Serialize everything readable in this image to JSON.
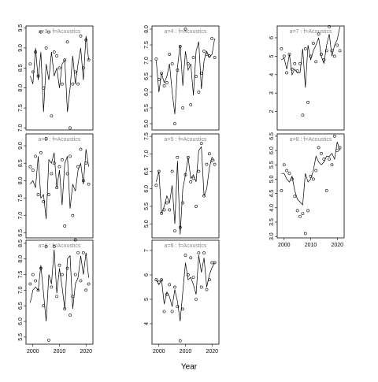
{
  "chart_data": [
    {
      "type": "line",
      "title": "a=3 : f=Acoustics",
      "x": [
        1999,
        2000,
        2001,
        2002,
        2003,
        2004,
        2005,
        2006,
        2007,
        2008,
        2009,
        2010,
        2011,
        2012,
        2013,
        2014,
        2015,
        2016,
        2017,
        2018,
        2019,
        2020,
        2021
      ],
      "xlim": [
        1997.4,
        2022.6
      ],
      "series": [
        {
          "style": "points",
          "color": "#000000",
          "values": [
            8.6,
            8.4,
            8.9,
            8.3,
            9.4,
            8.0,
            9.0,
            9.4,
            7.3,
            8.9,
            8.8,
            8.5,
            8.1,
            8.7,
            9.15,
            7.0,
            8.1,
            8.4,
            8.1,
            9.3,
            8.5,
            9.2,
            8.7
          ]
        },
        {
          "style": "line",
          "color": "#000000",
          "values": [
            8.3,
            8.1,
            9.0,
            8.2,
            8.9,
            7.4,
            8.6,
            8.2,
            8.9,
            8.3,
            8.5,
            8.0,
            8.6,
            8.7,
            7.4,
            8.0,
            8.8,
            8.1,
            8.6,
            9.0,
            8.2,
            9.3,
            8.7
          ]
        }
      ],
      "ylim": [
        6.95,
        9.55
      ],
      "yticks": [
        {
          "value": 7,
          "label": "7.0"
        },
        7.5,
        {
          "value": 8,
          "label": "8.0"
        },
        8.5,
        {
          "value": 9,
          "label": "9.0"
        },
        9.5
      ]
    },
    {
      "type": "line",
      "title": "a=2 : f=Acoustics",
      "x": [
        1999,
        2000,
        2001,
        2002,
        2003,
        2004,
        2005,
        2006,
        2007,
        2008,
        2009,
        2010,
        2011,
        2012,
        2013,
        2014,
        2015,
        2016,
        2017,
        2018,
        2019,
        2020,
        2021
      ],
      "xlim": [
        1997.4,
        2022.6
      ],
      "series": [
        {
          "style": "points",
          "color": "#000000",
          "values": [
            8.4,
            8.3,
            8.7,
            7.6,
            8.8,
            7.4,
            9.2,
            7.6,
            8.2,
            8.5,
            7.8,
            8.4,
            8.6,
            6.7,
            8.2,
            8.7,
            7.0,
            6.3,
            8.4,
            8.9,
            8.0,
            8.5,
            7.9
          ]
        },
        {
          "style": "line",
          "color": "#000000",
          "values": [
            7.9,
            8.0,
            7.8,
            8.7,
            7.5,
            7.6,
            6.9,
            8.6,
            8.5,
            8.8,
            7.8,
            8.3,
            7.3,
            8.5,
            8.7,
            7.2,
            7.9,
            7.7,
            8.3,
            8.5,
            7.9,
            8.9,
            8.4
          ]
        }
      ],
      "ylim": [
        6.36,
        9.34
      ],
      "yticks": [
        6.5,
        {
          "value": 7,
          "label": "7.0"
        },
        7.5,
        {
          "value": 8,
          "label": "8.0"
        },
        8.5,
        {
          "value": 9,
          "label": "9.0"
        }
      ]
    },
    {
      "type": "line",
      "title": "a=1 : f=Acoustics",
      "x": [
        1999,
        2000,
        2001,
        2002,
        2003,
        2004,
        2005,
        2006,
        2007,
        2008,
        2009,
        2010,
        2011,
        2012,
        2013,
        2014,
        2015,
        2016,
        2017,
        2018,
        2019,
        2020,
        2021
      ],
      "xlim": [
        1997.4,
        2022.6
      ],
      "xticks": [
        2000,
        2010,
        2020
      ],
      "series": [
        {
          "style": "points",
          "color": "#000000",
          "values": [
            7.2,
            7.5,
            7.3,
            7.0,
            7.7,
            6.5,
            8.4,
            5.4,
            7.1,
            8.4,
            6.8,
            7.8,
            7.5,
            6.4,
            7.7,
            6.2,
            6.8,
            7.5,
            8.2,
            7.3,
            8.2,
            7.0,
            7.2
          ]
        },
        {
          "style": "line",
          "color": "#000000",
          "values": [
            6.6,
            7.0,
            7.1,
            7.0,
            7.8,
            6.9,
            6.0,
            7.5,
            7.2,
            8.3,
            6.9,
            7.7,
            7.1,
            6.4,
            8.0,
            8.1,
            6.4,
            7.2,
            7.4,
            8.1,
            7.5,
            8.2,
            7.4
          ]
        }
      ],
      "ylim": [
        5.27,
        8.6
      ],
      "yticks": [
        5.5,
        {
          "value": 6,
          "label": "6.0"
        },
        6.5,
        {
          "value": 7,
          "label": "7.0"
        },
        7.5,
        {
          "value": 8,
          "label": "8.0"
        },
        8.5
      ]
    },
    {
      "type": "line",
      "title": "a=4 : f=Acoustics",
      "x": [
        1999,
        2000,
        2001,
        2002,
        2003,
        2004,
        2005,
        2006,
        2007,
        2008,
        2009,
        2010,
        2011,
        2012,
        2013,
        2014,
        2015,
        2016,
        2017,
        2018,
        2019,
        2020,
        2021
      ],
      "xlim": [
        1997.4,
        2022.6
      ],
      "series": [
        {
          "style": "points",
          "color": "#000000",
          "values": [
            7.05,
            6.4,
            6.6,
            6.2,
            6.3,
            7.2,
            6.9,
            5.0,
            6.7,
            7.45,
            5.5,
            8.0,
            6.9,
            5.6,
            7.1,
            6.5,
            6.0,
            6.6,
            7.3,
            7.2,
            7.15,
            7.7,
            7.1
          ]
        },
        {
          "style": "line",
          "color": "#000000",
          "values": [
            7.0,
            6.0,
            6.6,
            6.3,
            6.5,
            6.9,
            6.0,
            5.3,
            6.8,
            7.5,
            6.2,
            7.3,
            6.7,
            6.9,
            5.9,
            7.3,
            7.6,
            6.1,
            7.0,
            7.3,
            7.1,
            7.2,
            7.7
          ]
        }
      ],
      "ylim": [
        4.8,
        8.1
      ],
      "yticks": [
        {
          "value": 5,
          "label": "5.0"
        },
        5.5,
        {
          "value": 6,
          "label": "6.0"
        },
        6.5,
        {
          "value": 7,
          "label": "7.0"
        },
        7.5,
        {
          "value": 8,
          "label": "8.0"
        }
      ]
    },
    {
      "type": "line",
      "title": "a=5 : f=Acoustics",
      "x": [
        1999,
        2000,
        2001,
        2002,
        2003,
        2004,
        2005,
        2006,
        2007,
        2008,
        2009,
        2010,
        2011,
        2012,
        2013,
        2014,
        2015,
        2016,
        2017,
        2018,
        2019,
        2020,
        2021
      ],
      "xlim": [
        1997.4,
        2022.6
      ],
      "series": [
        {
          "style": "points",
          "color": "#000000",
          "values": [
            6.1,
            6.5,
            5.3,
            5.4,
            5.6,
            5.4,
            6.5,
            4.8,
            6.9,
            4.9,
            5.6,
            6.4,
            6.9,
            6.2,
            6.3,
            5.5,
            6.5,
            7.3,
            5.8,
            6.7,
            7.0,
            6.8,
            6.7
          ]
        },
        {
          "style": "line",
          "color": "#000000",
          "values": [
            6.2,
            6.5,
            5.3,
            5.5,
            5.8,
            5.6,
            6.1,
            5.0,
            6.8,
            4.7,
            6.0,
            6.4,
            6.9,
            6.3,
            6.4,
            6.2,
            7.1,
            7.2,
            5.8,
            6.0,
            6.6,
            6.9,
            6.8
          ]
        }
      ],
      "ylim": [
        4.6,
        7.57
      ],
      "yticks": [
        {
          "value": 5,
          "label": "5.0"
        },
        5.5,
        {
          "value": 6,
          "label": "6.0"
        },
        6.5,
        {
          "value": 7,
          "label": "7.0"
        },
        7.5
      ]
    },
    {
      "type": "line",
      "title": "a=6 : f=Acoustics",
      "x": [
        1999,
        2000,
        2001,
        2002,
        2003,
        2004,
        2005,
        2006,
        2007,
        2008,
        2009,
        2010,
        2011,
        2012,
        2013,
        2014,
        2015,
        2016,
        2017,
        2018,
        2019,
        2020,
        2021
      ],
      "xlim": [
        1997.4,
        2022.6
      ],
      "xticks": [
        2000,
        2010,
        2020
      ],
      "series": [
        {
          "style": "points",
          "color": "#000000",
          "values": [
            5.8,
            5.7,
            5.8,
            4.5,
            5.2,
            5.6,
            4.5,
            5.5,
            4.7,
            3.3,
            4.6,
            6.8,
            6.0,
            6.7,
            5.9,
            5.0,
            6.9,
            5.5,
            6.9,
            5.4,
            5.8,
            6.5,
            6.5
          ]
        },
        {
          "style": "line",
          "color": "#000000",
          "values": [
            5.8,
            5.6,
            5.8,
            4.8,
            5.3,
            5.1,
            4.7,
            5.4,
            4.9,
            4.1,
            5.3,
            6.5,
            5.8,
            5.9,
            5.6,
            5.2,
            6.8,
            6.1,
            6.7,
            5.5,
            6.0,
            6.3,
            6.5
          ]
        }
      ],
      "ylim": [
        3.16,
        7.42
      ],
      "yticks": [
        4,
        5,
        6,
        7
      ]
    },
    {
      "type": "line",
      "title": "a=7 : f=Acoustics",
      "x": [
        1999,
        2000,
        2001,
        2002,
        2003,
        2004,
        2005,
        2006,
        2007,
        2008,
        2009,
        2010,
        2011,
        2012,
        2013,
        2014,
        2015,
        2016,
        2017,
        2018,
        2019,
        2020,
        2021
      ],
      "xlim": [
        1997.4,
        2022.6
      ],
      "series": [
        {
          "style": "points",
          "color": "#000000",
          "values": [
            5.4,
            5.0,
            4.1,
            5.1,
            4.3,
            4.6,
            4.2,
            4.6,
            1.8,
            5.4,
            2.5,
            5.0,
            5.7,
            4.7,
            6.2,
            5.1,
            4.8,
            5.3,
            6.6,
            5.3,
            5.0,
            5.6,
            5.3
          ]
        },
        {
          "style": "line",
          "color": "#000000",
          "values": [
            4.8,
            4.9,
            4.3,
            5.1,
            4.0,
            4.3,
            4.1,
            4.1,
            5.4,
            3.3,
            5.6,
            4.8,
            5.3,
            5.6,
            6.0,
            5.0,
            4.6,
            5.6,
            6.2,
            5.0,
            5.6,
            5.9,
            6.6
          ]
        }
      ],
      "ylim": [
        1.0,
        6.64
      ],
      "yticks": [
        2,
        3,
        4,
        5,
        6
      ]
    },
    {
      "type": "line",
      "title": "a=8 : f=Acoustics",
      "x": [
        1999,
        2000,
        2001,
        2002,
        2003,
        2004,
        2005,
        2006,
        2007,
        2008,
        2009,
        2010,
        2011,
        2012,
        2013,
        2014,
        2015,
        2016,
        2017,
        2018,
        2019,
        2020,
        2021
      ],
      "xlim": [
        1997.4,
        2022.6
      ],
      "xticks": [
        2000,
        2010,
        2020
      ],
      "series": [
        {
          "style": "points",
          "color": "#000000",
          "values": [
            4.6,
            5.5,
            5.3,
            5.2,
            5.0,
            4.4,
            3.9,
            3.7,
            3.8,
            3.1,
            3.9,
            5.1,
            5.0,
            5.3,
            6.1,
            5.9,
            5.7,
            4.6,
            5.7,
            5.5,
            6.5,
            6.0,
            6.1
          ]
        },
        {
          "style": "line",
          "color": "#000000",
          "values": [
            5.2,
            5.2,
            5.0,
            4.9,
            5.1,
            4.6,
            4.3,
            4.2,
            4.1,
            5.2,
            4.9,
            5.0,
            5.3,
            5.8,
            5.6,
            5.5,
            5.6,
            5.8,
            5.8,
            5.9,
            5.7,
            6.3,
            6.0
          ]
        }
      ],
      "ylim": [
        2.95,
        6.58
      ],
      "yticks": [
        {
          "value": 3,
          "label": "3.0"
        },
        3.5,
        {
          "value": 4,
          "label": "4.0"
        },
        4.5,
        {
          "value": 5,
          "label": "5.0"
        },
        5.5,
        {
          "value": 6,
          "label": "6.0"
        },
        6.5
      ]
    }
  ],
  "xlabel": "Year"
}
